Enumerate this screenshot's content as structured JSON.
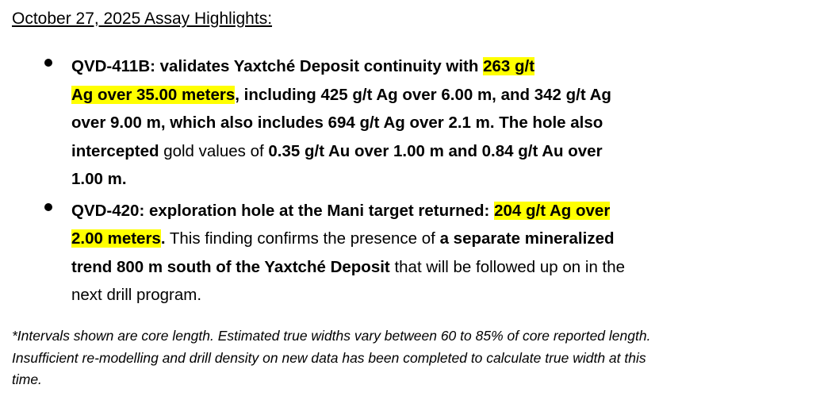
{
  "title": "October 27, 2025 Assay Highlights:",
  "highlight_color": "#ffff00",
  "bullets": [
    {
      "lines": [
        [
          {
            "text": "QVD-411B: validates Yaxtché Deposit continuity with ",
            "bold": true
          },
          {
            "text": "263 g/t",
            "bold": true,
            "highlight": true
          }
        ],
        [
          {
            "text": "Ag over 35.00 meters",
            "bold": true,
            "highlight": true
          },
          {
            "text": ", including 425 g/t Ag over 6.00 m, and 342 g/t Ag",
            "bold": true
          }
        ],
        [
          {
            "text": "over 9.00 m, which also includes 694 g/t Ag over 2.1 m. The hole also",
            "bold": true
          }
        ],
        [
          {
            "text": "intercepted",
            "bold": true
          },
          {
            "text": " gold values of "
          },
          {
            "text": "0.35 g/t Au over 1.00 m and 0.84 g/t Au over",
            "bold": true
          }
        ],
        [
          {
            "text": "1.00 m.",
            "bold": true
          }
        ]
      ]
    },
    {
      "lines": [
        [
          {
            "text": "QVD-420: exploration hole at the Mani target returned: ",
            "bold": true
          },
          {
            "text": "204 g/t Ag over",
            "bold": true,
            "highlight": true
          }
        ],
        [
          {
            "text": "2.00 meters",
            "bold": true,
            "highlight": true
          },
          {
            "text": ".",
            "bold": true
          },
          {
            "text": " This finding confirms the presence of "
          },
          {
            "text": "a separate mineralized",
            "bold": true
          }
        ],
        [
          {
            "text": "trend 800 m south of the Yaxtché Deposit",
            "bold": true
          },
          {
            "text": " that will be followed up on in the"
          }
        ],
        [
          {
            "text": "next drill program."
          }
        ]
      ]
    }
  ],
  "footnote": [
    "*Intervals shown are core length. Estimated true widths vary between 60 to 85% of core reported length.",
    "Insufficient re-modelling and drill density on new data has been completed to calculate true width at this",
    "time."
  ]
}
